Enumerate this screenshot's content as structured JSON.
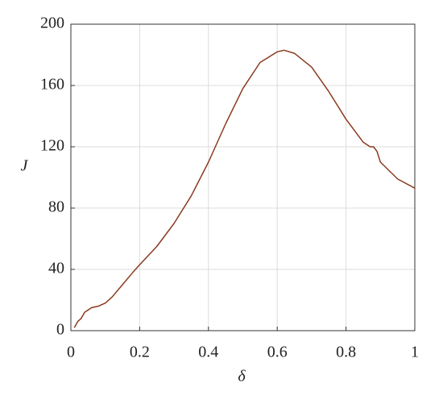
{
  "chart_data": {
    "type": "line",
    "xlabel": "δ",
    "ylabel": "J",
    "x": [
      0.01,
      0.02,
      0.03,
      0.04,
      0.06,
      0.08,
      0.1,
      0.12,
      0.15,
      0.18,
      0.2,
      0.25,
      0.3,
      0.35,
      0.4,
      0.45,
      0.5,
      0.55,
      0.6,
      0.62,
      0.65,
      0.7,
      0.75,
      0.8,
      0.85,
      0.87,
      0.88,
      0.89,
      0.9,
      0.95,
      1
    ],
    "series": [
      {
        "color": "#8b3a1e",
        "values": [
          2,
          6,
          8,
          12,
          15,
          16,
          18,
          22,
          30,
          38,
          43,
          55,
          70,
          88,
          110,
          135,
          158,
          175,
          182,
          183,
          181,
          172,
          156,
          138,
          123,
          120,
          120,
          117,
          110,
          99,
          93
        ]
      }
    ],
    "xlim": [
      0,
      1
    ],
    "xticks": [
      0,
      0.2,
      0.4,
      0.6,
      0.8,
      1
    ],
    "ylim": [
      0,
      200
    ],
    "yticks": [
      0,
      40,
      80,
      120,
      160,
      200
    ],
    "grid": true
  }
}
